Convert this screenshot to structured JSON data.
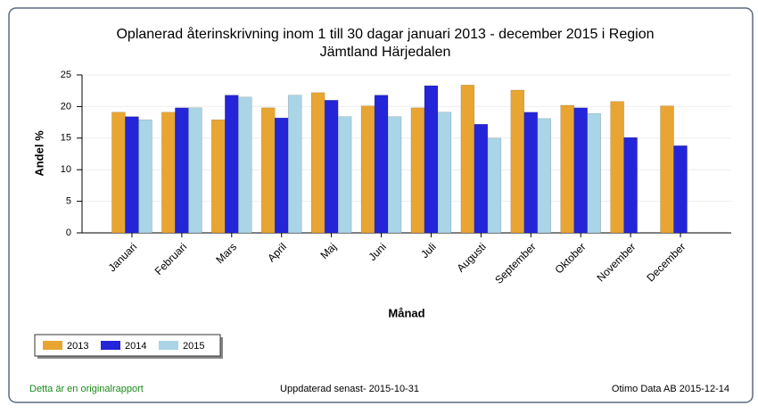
{
  "chart_data": {
    "type": "bar",
    "title": [
      "Oplanerad återinskrivning inom 1 till 30 dagar januari 2013 - december 2015 i   Region",
      "Jämtland Härjedalen"
    ],
    "x_label": "Månad",
    "y_label": "Andel %",
    "categories": [
      "Januari",
      "Februari",
      "Mars",
      "April",
      "Maj",
      "Juni",
      "Juli",
      "Augusti",
      "September",
      "Oktober",
      "November",
      "December"
    ],
    "series": [
      {
        "name": "2013",
        "color": "#e9a532",
        "values": [
          19.1,
          19.1,
          17.9,
          19.8,
          22.2,
          20.1,
          19.8,
          23.4,
          22.6,
          20.2,
          20.8,
          20.1
        ]
      },
      {
        "name": "2014",
        "color": "#2424d8",
        "values": [
          18.4,
          19.8,
          21.8,
          18.2,
          21.0,
          21.8,
          23.3,
          17.2,
          19.1,
          19.8,
          15.1,
          13.8
        ]
      },
      {
        "name": "2015",
        "color": "#a9d5e6",
        "values": [
          17.9,
          19.8,
          21.5,
          21.8,
          18.4,
          18.4,
          19.1,
          15.0,
          18.1,
          18.9,
          null,
          null
        ]
      }
    ],
    "ylim": [
      0,
      25
    ],
    "yticks": [
      0,
      5,
      10,
      15,
      20,
      25
    ],
    "grid": true
  },
  "footer": {
    "left": "Detta är en originalrapport",
    "center": "Uppdaterad senast- 2015-10-31",
    "right": "Otimo Data AB 2015-12-14"
  }
}
